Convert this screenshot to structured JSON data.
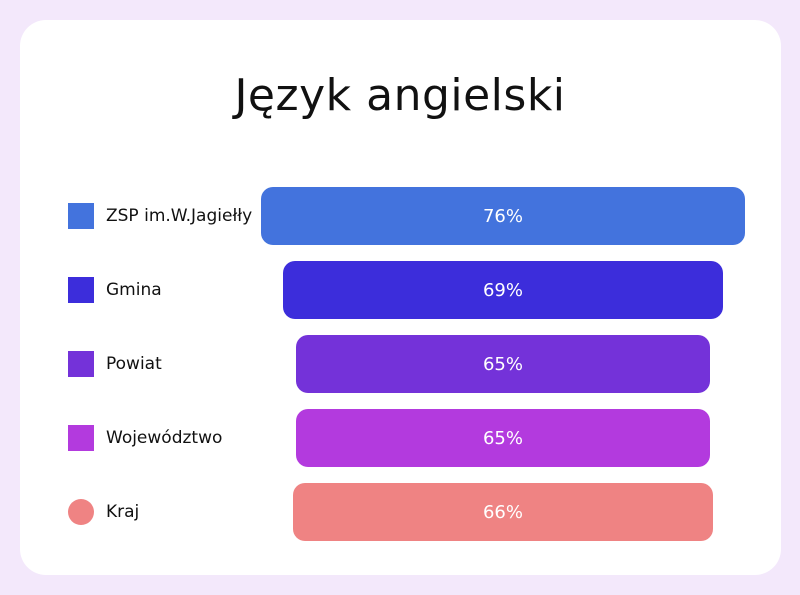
{
  "chart_data": {
    "type": "bar",
    "title": "Język angielski",
    "categories": [
      "ZSP im.W.Jagiełły",
      "Gmina",
      "Powiat",
      "Województwo",
      "Kraj"
    ],
    "values": [
      76,
      69,
      65,
      65,
      66
    ],
    "value_labels": [
      "76%",
      "69%",
      "65%",
      "65%",
      "66%"
    ],
    "colors": [
      "#4373dd",
      "#3c2ddb",
      "#7432d9",
      "#b33ade",
      "#ef8383"
    ],
    "legend_shapes": [
      "square",
      "square",
      "square",
      "square",
      "circle"
    ],
    "legend_position": "left",
    "grid": false
  }
}
